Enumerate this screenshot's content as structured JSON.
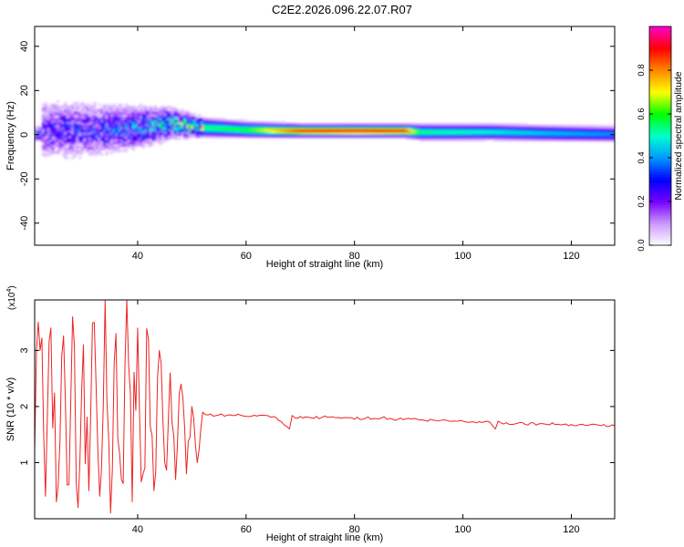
{
  "title": "C2E2.2026.096.22.07.R07",
  "chart_data": [
    {
      "type": "heatmap",
      "xlabel": "Height of straight line (km)",
      "ylabel": "Frequency (Hz)",
      "xlim": [
        21,
        128
      ],
      "ylim": [
        -50,
        49
      ],
      "xticks": [
        40,
        60,
        80,
        100,
        120
      ],
      "yticks": [
        -40,
        -20,
        0,
        20,
        40
      ],
      "colorbar": {
        "label": "Normalized spectral amplitude",
        "range": [
          0,
          1
        ],
        "ticks": [
          0.0,
          0.2,
          0.4,
          0.6,
          0.8
        ],
        "colormap": [
          "#ffffff",
          "#cc99ff",
          "#7700ff",
          "#0000ff",
          "#0099ff",
          "#00ffcc",
          "#00ff00",
          "#ffff00",
          "#ff8800",
          "#ff0000",
          "#ff00cc"
        ]
      },
      "ridge": [
        {
          "x": 22,
          "y": 2,
          "amp": 0.3,
          "spread": 10
        },
        {
          "x": 30,
          "y": 2,
          "amp": 0.3,
          "spread": 9
        },
        {
          "x": 40,
          "y": 3,
          "amp": 0.35,
          "spread": 7
        },
        {
          "x": 46,
          "y": 5,
          "amp": 0.45,
          "spread": 5
        },
        {
          "x": 52,
          "y": 3,
          "amp": 0.55,
          "spread": 3
        },
        {
          "x": 60,
          "y": 2,
          "amp": 0.6,
          "spread": 2.5
        },
        {
          "x": 70,
          "y": 1.5,
          "amp": 0.9,
          "spread": 2
        },
        {
          "x": 80,
          "y": 1.5,
          "amp": 0.95,
          "spread": 2
        },
        {
          "x": 89,
          "y": 1.5,
          "amp": 0.9,
          "spread": 2
        },
        {
          "x": 92,
          "y": 1,
          "amp": 0.55,
          "spread": 2.5
        },
        {
          "x": 105,
          "y": 1,
          "amp": 0.5,
          "spread": 2.5
        },
        {
          "x": 115,
          "y": 0.5,
          "amp": 0.45,
          "spread": 2.5
        },
        {
          "x": 128,
          "y": 0,
          "amp": 0.4,
          "spread": 2.5
        }
      ]
    },
    {
      "type": "line",
      "xlabel": "Height of straight line (km)",
      "ylabel": "SNR (10 * v/v)",
      "exponent_label": "(x10",
      "exponent_power": "4",
      "exponent_close": ")",
      "xlim": [
        21,
        128
      ],
      "ylim": [
        0,
        3.9
      ],
      "xticks": [
        40,
        60,
        80,
        100,
        120
      ],
      "yticks": [
        1,
        2,
        3
      ],
      "series": [
        {
          "color": "#ee2222",
          "x": [
            21,
            22,
            23,
            24,
            25,
            26,
            27,
            28,
            29,
            30,
            31,
            32,
            33,
            34,
            35,
            36,
            37,
            38,
            39,
            40,
            41,
            42,
            43,
            44,
            45,
            46,
            47,
            48,
            49,
            50,
            51,
            52,
            53,
            55,
            58,
            62,
            65,
            68,
            68.5,
            69,
            72,
            75,
            78,
            82,
            85,
            88,
            90,
            92,
            95,
            100,
            105,
            106,
            106.5,
            107,
            110,
            115,
            120,
            125,
            128
          ],
          "y": [
            1.2,
            3.0,
            0.4,
            3.4,
            0.3,
            2.9,
            0.6,
            3.6,
            0.2,
            3.1,
            0.5,
            3.5,
            0.4,
            3.9,
            0.1,
            3.3,
            0.7,
            3.9,
            0.3,
            3.4,
            0.8,
            3.2,
            0.5,
            3.0,
            1.0,
            2.6,
            0.7,
            2.4,
            0.8,
            2.0,
            1.0,
            1.9,
            1.85,
            1.85,
            1.84,
            1.83,
            1.82,
            1.6,
            1.84,
            1.8,
            1.8,
            1.81,
            1.8,
            1.79,
            1.8,
            1.77,
            1.79,
            1.76,
            1.75,
            1.74,
            1.72,
            1.6,
            1.74,
            1.71,
            1.7,
            1.69,
            1.68,
            1.67,
            1.66
          ]
        }
      ]
    }
  ]
}
